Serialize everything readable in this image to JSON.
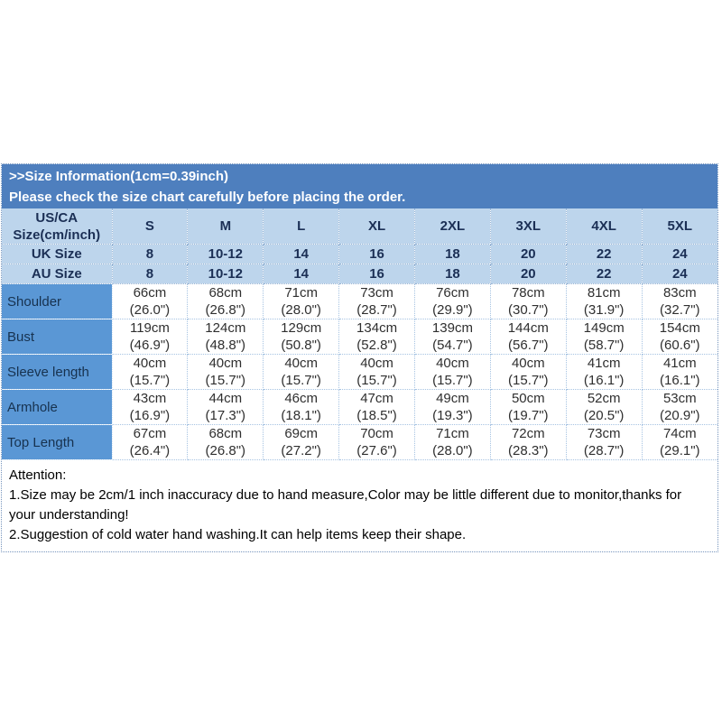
{
  "colors": {
    "band_bg": "#4e7fbe",
    "header_row_bg": "#bdd5ec",
    "row_label_bg": "#5a97d5",
    "band_text": "#ffffff",
    "header_text": "#1b2f55",
    "data_text": "#2f2f2f"
  },
  "band": {
    "line1": ">>Size Information(1cm=0.39inch)",
    "line2": "Please check the size chart carefully before placing the order."
  },
  "table": {
    "corner_label": "US/CA\nSize(cm/inch)",
    "size_headers": [
      "S",
      "M",
      "L",
      "XL",
      "2XL",
      "3XL",
      "4XL",
      "5XL"
    ],
    "uk_row": {
      "label": "UK Size",
      "values": [
        "8",
        "10-12",
        "14",
        "16",
        "18",
        "20",
        "22",
        "24"
      ]
    },
    "au_row": {
      "label": "AU Size",
      "values": [
        "8",
        "10-12",
        "14",
        "16",
        "18",
        "20",
        "22",
        "24"
      ]
    },
    "measure_rows": [
      {
        "label": "Shoulder",
        "values": [
          "66cm\n(26.0\")",
          "68cm\n(26.8\")",
          "71cm\n(28.0\")",
          "73cm\n(28.7\")",
          "76cm\n(29.9\")",
          "78cm\n(30.7\")",
          "81cm\n(31.9\")",
          "83cm\n(32.7\")"
        ]
      },
      {
        "label": "Bust",
        "values": [
          "119cm\n(46.9\")",
          "124cm\n(48.8\")",
          "129cm\n(50.8\")",
          "134cm\n(52.8\")",
          "139cm\n(54.7\")",
          "144cm\n(56.7\")",
          "149cm\n(58.7\")",
          "154cm\n(60.6\")"
        ]
      },
      {
        "label": "Sleeve length",
        "values": [
          "40cm\n(15.7\")",
          "40cm\n(15.7\")",
          "40cm\n(15.7\")",
          "40cm\n(15.7\")",
          "40cm\n(15.7\")",
          "40cm\n(15.7\")",
          "41cm\n(16.1\")",
          "41cm\n(16.1\")"
        ]
      },
      {
        "label": "Armhole",
        "values": [
          "43cm\n(16.9\")",
          "44cm\n(17.3\")",
          "46cm\n(18.1\")",
          "47cm\n(18.5\")",
          "49cm\n(19.3\")",
          "50cm\n(19.7\")",
          "52cm\n(20.5\")",
          "53cm\n(20.9\")"
        ]
      },
      {
        "label": "Top Length",
        "values": [
          "67cm\n(26.4\")",
          "68cm\n(26.8\")",
          "69cm\n(27.2\")",
          "70cm\n(27.6\")",
          "71cm\n(28.0\")",
          "72cm\n(28.3\")",
          "73cm\n(28.7\")",
          "74cm\n(29.1\")"
        ]
      }
    ]
  },
  "attention": {
    "title": "Attention:",
    "line1": "1.Size may be 2cm/1 inch inaccuracy due to hand measure,Color may be little different due to monitor,thanks for your understanding!",
    "line2": "2.Suggestion of cold water hand washing.It can help items keep their shape."
  }
}
